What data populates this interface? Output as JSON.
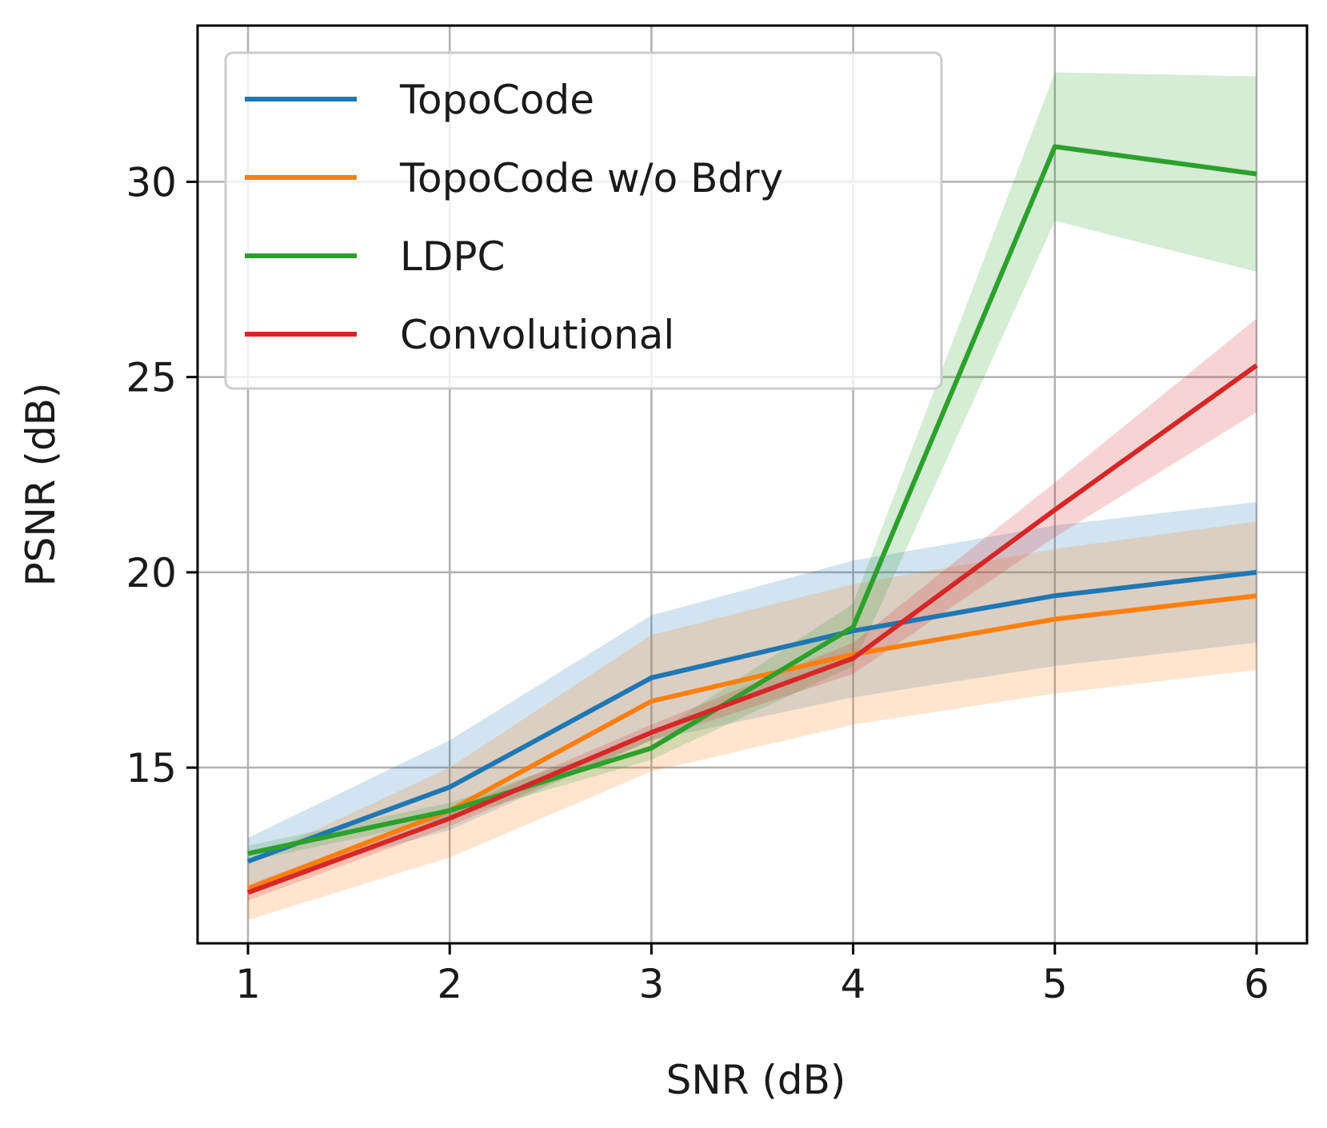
{
  "chart_data": {
    "type": "line",
    "title": "",
    "xlabel": "SNR (dB)",
    "ylabel": "PSNR (dB)",
    "xlim": [
      0.75,
      6.25
    ],
    "ylim": [
      10.5,
      34.0
    ],
    "grid": true,
    "legend_position": "top-left",
    "x": [
      1,
      2,
      3,
      4,
      5,
      6
    ],
    "xtick_labels": [
      "1",
      "2",
      "3",
      "4",
      "5",
      "6"
    ],
    "ytick_values": [
      15,
      20,
      25,
      30
    ],
    "ytick_labels": [
      "15",
      "20",
      "25",
      "30"
    ],
    "series": [
      {
        "name": "TopoCode",
        "color": "#1f77b4",
        "values": [
          12.6,
          14.5,
          17.3,
          18.5,
          19.4,
          20.0
        ],
        "lower": [
          12.0,
          13.4,
          15.7,
          16.8,
          17.6,
          18.2
        ],
        "upper": [
          13.2,
          15.7,
          18.9,
          20.3,
          21.2,
          21.8
        ]
      },
      {
        "name": "TopoCode w/o Bdry",
        "color": "#ff7f0e",
        "values": [
          11.9,
          13.9,
          16.7,
          17.9,
          18.8,
          19.4
        ],
        "lower": [
          11.1,
          12.7,
          14.9,
          16.1,
          16.9,
          17.5
        ],
        "upper": [
          12.6,
          15.0,
          18.4,
          19.7,
          20.6,
          21.3
        ]
      },
      {
        "name": "LDPC",
        "color": "#2ca02c",
        "values": [
          12.8,
          13.9,
          15.5,
          18.6,
          30.9,
          30.2
        ],
        "lower": [
          12.6,
          13.7,
          15.2,
          17.6,
          29.0,
          27.7
        ],
        "upper": [
          13.0,
          14.1,
          15.8,
          19.2,
          32.8,
          32.7
        ]
      },
      {
        "name": "Convolutional",
        "color": "#d62728",
        "values": [
          11.8,
          13.7,
          15.9,
          17.8,
          21.6,
          25.3
        ],
        "lower": [
          11.6,
          13.5,
          15.7,
          17.4,
          20.9,
          24.1
        ],
        "upper": [
          12.0,
          13.9,
          16.1,
          18.2,
          22.3,
          26.5
        ]
      }
    ]
  }
}
